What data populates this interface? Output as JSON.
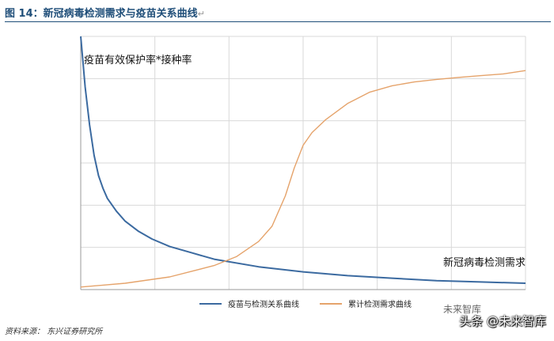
{
  "figure": {
    "title": "图 14：新冠病毒检测需求与疫苗关系曲线",
    "source": "资料来源：  东兴证券研究所",
    "watermark": "头条 @未来智库",
    "watermark_logo": "未来智库",
    "return_mark": "↵"
  },
  "chart_data": {
    "type": "line",
    "title": "",
    "xlabel": "新冠病毒检测需求",
    "ylabel": "疫苗有效保护率*接种率",
    "xlim": [
      0,
      100
    ],
    "ylim": [
      0,
      100
    ],
    "grid": true,
    "legend_position": "bottom",
    "series": [
      {
        "name": "疫苗与检测关系曲线",
        "color": "#3b6aa0",
        "x": [
          0,
          1,
          2,
          3,
          4,
          5,
          6,
          8,
          10,
          13,
          16,
          20,
          25,
          30,
          40,
          50,
          60,
          70,
          80,
          90,
          100
        ],
        "y": [
          100,
          80,
          65,
          53,
          45,
          40,
          36,
          31,
          27,
          23,
          20,
          17,
          14.5,
          12,
          9,
          7,
          5.5,
          4.5,
          3.5,
          3,
          2.5
        ]
      },
      {
        "name": "累计检测需求曲线",
        "color": "#e5a36b",
        "x": [
          0,
          10,
          20,
          30,
          35,
          40,
          43,
          46,
          48,
          50,
          52,
          55,
          60,
          65,
          70,
          75,
          80,
          85,
          90,
          95,
          100
        ],
        "y": [
          1,
          2.5,
          5,
          9.5,
          13,
          19,
          25,
          37,
          48,
          57,
          62,
          67,
          73.5,
          78,
          80.5,
          82,
          83,
          83.8,
          84.5,
          85.2,
          86.5
        ]
      }
    ]
  }
}
